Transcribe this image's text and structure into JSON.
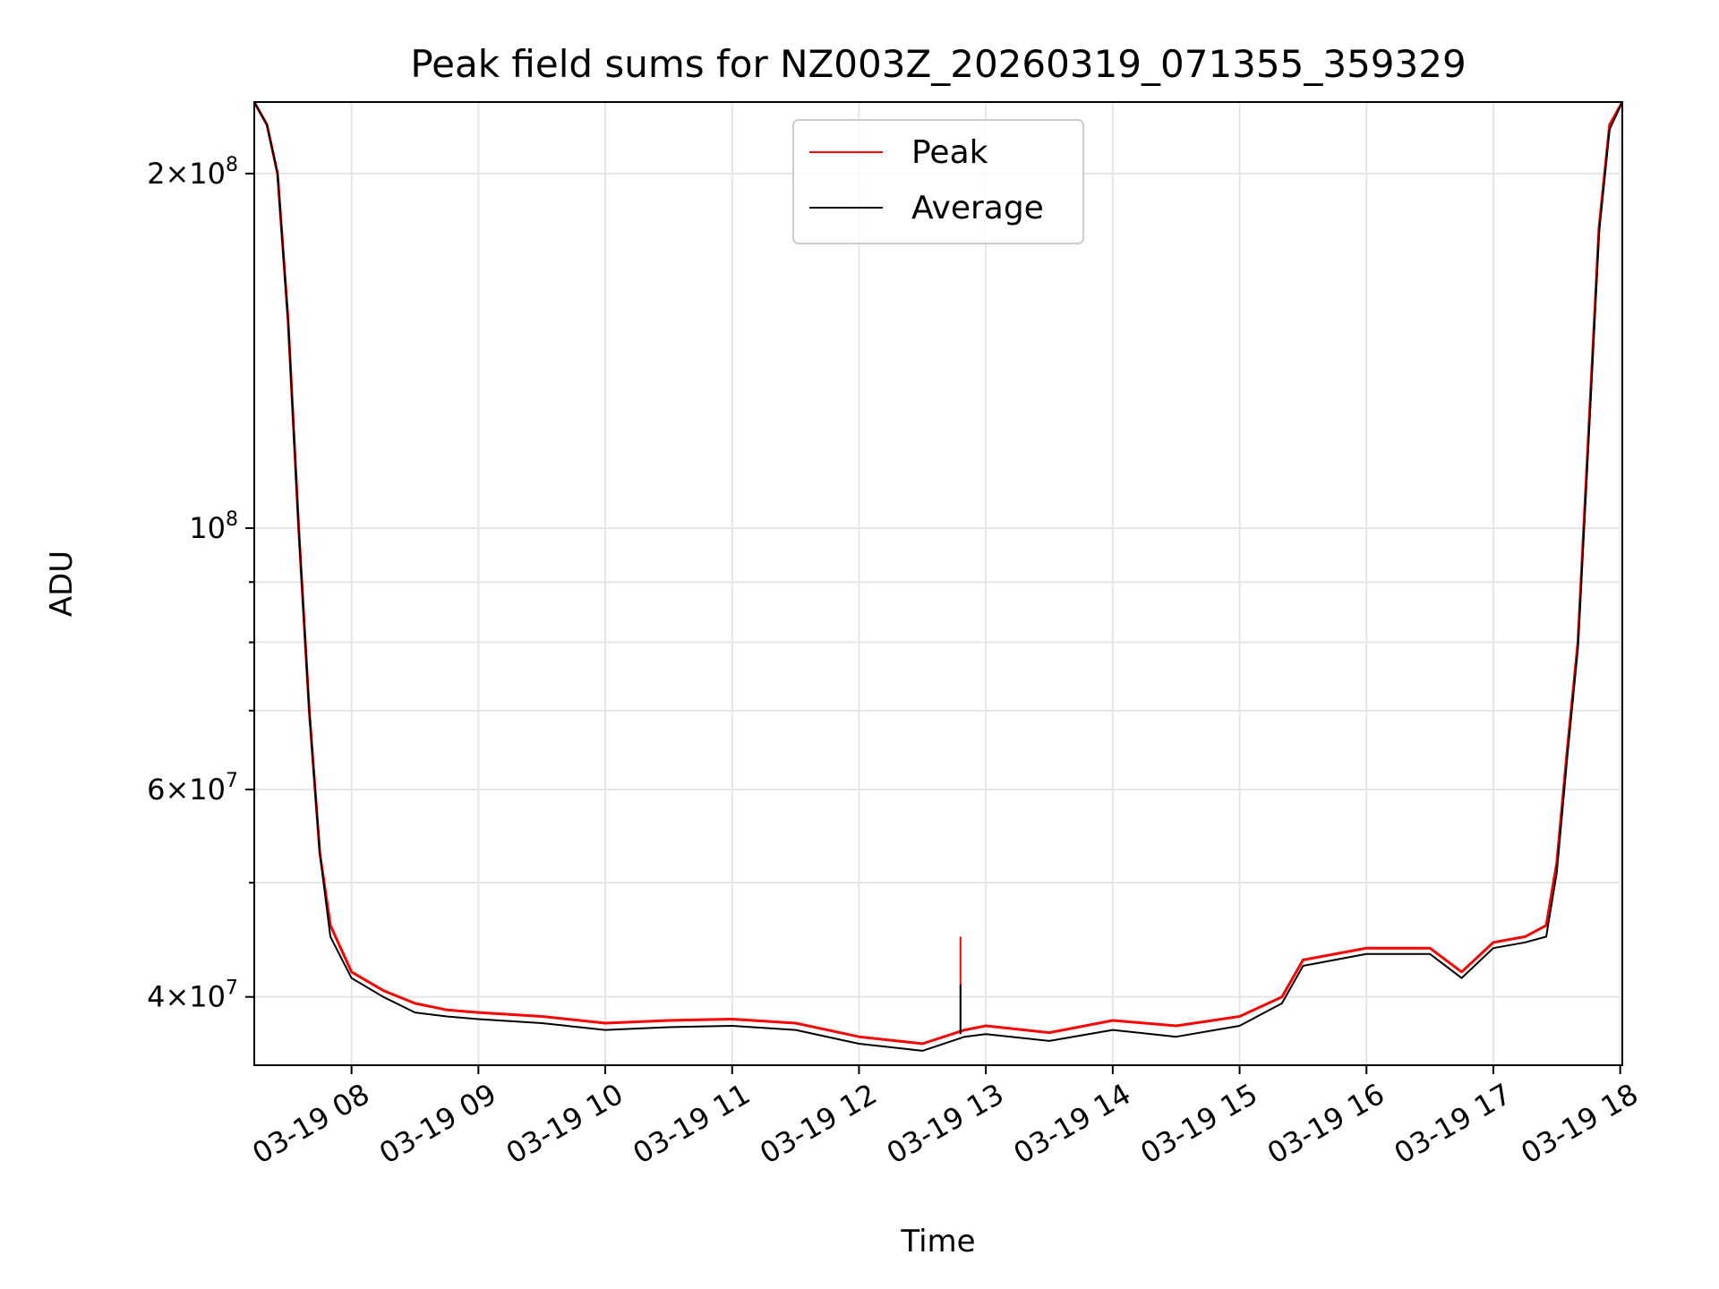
{
  "chart_data": {
    "type": "line",
    "title": "Peak field sums for NZ003Z_20260319_071355_359329",
    "xlabel": "Time",
    "ylabel": "ADU",
    "yscale": "log",
    "ylim": [
      35000000,
      230000000
    ],
    "xlim": [
      "2026-03-19T07:14",
      "2026-03-19T18:01"
    ],
    "grid": true,
    "legend_position": "upper center",
    "x_ticks": [
      "03-19 08",
      "03-19 09",
      "03-19 10",
      "03-19 11",
      "03-19 12",
      "03-19 13",
      "03-19 14",
      "03-19 15",
      "03-19 16",
      "03-19 17",
      "03-19 18"
    ],
    "x_tick_values": [
      "2026-03-19T08:00",
      "2026-03-19T09:00",
      "2026-03-19T10:00",
      "2026-03-19T11:00",
      "2026-03-19T12:00",
      "2026-03-19T13:00",
      "2026-03-19T14:00",
      "2026-03-19T15:00",
      "2026-03-19T16:00",
      "2026-03-19T17:00",
      "2026-03-19T18:00"
    ],
    "y_ticks": [
      {
        "value": 40000000,
        "mantissa": "4",
        "exponent": "7"
      },
      {
        "value": 60000000,
        "mantissa": "6",
        "exponent": "7"
      },
      {
        "value": 100000000,
        "mantissa": "",
        "exponent": "8"
      },
      {
        "value": 200000000,
        "mantissa": "2",
        "exponent": "8"
      }
    ],
    "y_minor_ticks": [
      50000000,
      70000000,
      80000000,
      90000000
    ],
    "x": [
      "2026-03-19T07:14",
      "2026-03-19T07:20",
      "2026-03-19T07:25",
      "2026-03-19T07:30",
      "2026-03-19T07:35",
      "2026-03-19T07:40",
      "2026-03-19T07:45",
      "2026-03-19T07:50",
      "2026-03-19T08:00",
      "2026-03-19T08:15",
      "2026-03-19T08:30",
      "2026-03-19T08:45",
      "2026-03-19T09:00",
      "2026-03-19T09:30",
      "2026-03-19T10:00",
      "2026-03-19T10:30",
      "2026-03-19T11:00",
      "2026-03-19T11:30",
      "2026-03-19T12:00",
      "2026-03-19T12:30",
      "2026-03-19T12:50",
      "2026-03-19T13:00",
      "2026-03-19T13:30",
      "2026-03-19T14:00",
      "2026-03-19T14:30",
      "2026-03-19T15:00",
      "2026-03-19T15:20",
      "2026-03-19T15:30",
      "2026-03-19T16:00",
      "2026-03-19T16:30",
      "2026-03-19T16:45",
      "2026-03-19T17:00",
      "2026-03-19T17:15",
      "2026-03-19T17:25",
      "2026-03-19T17:30",
      "2026-03-19T17:35",
      "2026-03-19T17:40",
      "2026-03-19T17:45",
      "2026-03-19T17:50",
      "2026-03-19T17:55",
      "2026-03-19T18:01"
    ],
    "series": [
      {
        "name": "Peak",
        "color": "#ff0000",
        "values": [
          230000000,
          220000000,
          200000000,
          150000000,
          100000000,
          70000000,
          53000000,
          46000000,
          42000000,
          40500000,
          39500000,
          39000000,
          38800000,
          38500000,
          38000000,
          38200000,
          38300000,
          38000000,
          37000000,
          36500000,
          37500000,
          37800000,
          37300000,
          38200000,
          37800000,
          38500000,
          40000000,
          43000000,
          44000000,
          44000000,
          42000000,
          44500000,
          45000000,
          46000000,
          52000000,
          65000000,
          80000000,
          120000000,
          180000000,
          220000000,
          230000000
        ]
      },
      {
        "name": "Average",
        "color": "#000000",
        "values": [
          230000000,
          220000000,
          200000000,
          150000000,
          100000000,
          70000000,
          53000000,
          45000000,
          41500000,
          40000000,
          38800000,
          38500000,
          38300000,
          38000000,
          37500000,
          37700000,
          37800000,
          37500000,
          36500000,
          36000000,
          37000000,
          37200000,
          36700000,
          37500000,
          37000000,
          37800000,
          39500000,
          42500000,
          43500000,
          43500000,
          41500000,
          44000000,
          44500000,
          45000000,
          51000000,
          64000000,
          79000000,
          118000000,
          178000000,
          218000000,
          230000000
        ]
      }
    ],
    "spike": {
      "x": "2026-03-19T12:48",
      "peak": 45000000,
      "average": 41000000
    }
  }
}
